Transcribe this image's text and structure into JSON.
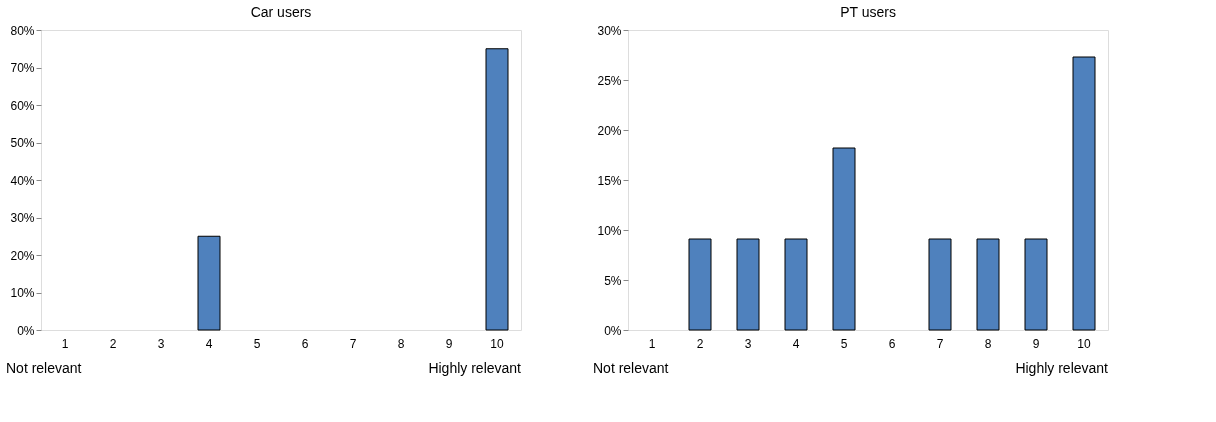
{
  "chart_data": [
    {
      "type": "bar",
      "title": "Car users",
      "categories": [
        "1",
        "2",
        "3",
        "4",
        "5",
        "6",
        "7",
        "8",
        "9",
        "10"
      ],
      "series": [
        {
          "color": "#4f81bd",
          "values": [
            0,
            0,
            0,
            25,
            0,
            0,
            0,
            0,
            0,
            75
          ]
        }
      ],
      "ylim": [
        0,
        80
      ],
      "yticks": [
        {
          "value": 0,
          "label": "0%"
        },
        {
          "value": 10,
          "label": "10%"
        },
        {
          "value": 20,
          "label": "20%"
        },
        {
          "value": 30,
          "label": "30%"
        },
        {
          "value": 40,
          "label": "40%"
        },
        {
          "value": 50,
          "label": "50%"
        },
        {
          "value": 60,
          "label": "60%"
        },
        {
          "value": 70,
          "label": "70%"
        },
        {
          "value": 80,
          "label": "80%"
        }
      ],
      "grid": false,
      "legend": false,
      "annotations": [
        "Not relevant",
        "Highly relevant"
      ]
    },
    {
      "type": "bar",
      "title": "PT users",
      "categories": [
        "1",
        "2",
        "3",
        "4",
        "5",
        "6",
        "7",
        "8",
        "9",
        "10"
      ],
      "series": [
        {
          "color": "#4f81bd",
          "values": [
            0,
            9.1,
            9.1,
            9.1,
            18.2,
            0,
            9.1,
            9.1,
            9.1,
            27.3
          ]
        }
      ],
      "ylim": [
        0,
        30
      ],
      "yticks": [
        {
          "value": 0,
          "label": "0%"
        },
        {
          "value": 5,
          "label": "5%"
        },
        {
          "value": 10,
          "label": "10%"
        },
        {
          "value": 15,
          "label": "15%"
        },
        {
          "value": 20,
          "label": "20%"
        },
        {
          "value": 25,
          "label": "25%"
        },
        {
          "value": 30,
          "label": "30%"
        }
      ],
      "grid": false,
      "legend": false,
      "annotations": [
        "Not relevant",
        "Highly relevant"
      ]
    }
  ]
}
